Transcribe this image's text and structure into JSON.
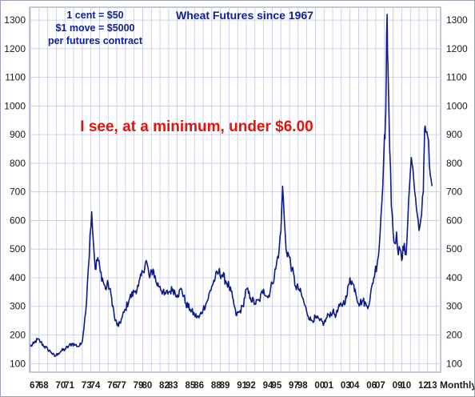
{
  "chart_data": {
    "type": "line",
    "title": "Wheat Futures since 1967",
    "notes": [
      "1 cent = $50",
      "$1 move = $5000",
      "per futures contract"
    ],
    "annotation": "I see, at a minimum, under $6.00",
    "x_unit_label": "Monthly",
    "x_tick_labels": [
      "67",
      "68",
      "70",
      "71",
      "73",
      "74",
      "76",
      "77",
      "79",
      "80",
      "82",
      "83",
      "85",
      "86",
      "88",
      "89",
      "91",
      "92",
      "94",
      "95",
      "97",
      "98",
      "00",
      "01",
      "03",
      "04",
      "06",
      "07",
      "09",
      "10",
      "12",
      "13"
    ],
    "x_tick_years": [
      1967,
      1968,
      1970,
      1971,
      1973,
      1974,
      1976,
      1977,
      1979,
      1980,
      1982,
      1983,
      1985,
      1986,
      1988,
      1989,
      1991,
      1992,
      1994,
      1995,
      1997,
      1998,
      2000,
      2001,
      2003,
      2004,
      2006,
      2007,
      2009,
      2010,
      2012,
      2013
    ],
    "xlim": [
      1966.9,
      2014.5
    ],
    "y_ticks": [
      100,
      200,
      300,
      400,
      500,
      600,
      700,
      800,
      900,
      1000,
      1100,
      1200,
      1300
    ],
    "ylim": [
      70,
      1345
    ],
    "y_axis_sides": [
      "left",
      "right"
    ],
    "grid": true,
    "line_color": "#0d1a8c",
    "series": [
      {
        "x": [
          1967.0,
          1967.4,
          1967.8,
          1968.2,
          1968.6,
          1969.0,
          1969.4,
          1969.8,
          1970.2,
          1970.6,
          1971.0,
          1971.4,
          1971.8,
          1972.2,
          1972.6,
          1972.9,
          1973.1,
          1973.3,
          1973.5,
          1973.7,
          1973.9,
          1974.1,
          1974.3,
          1974.5,
          1974.8,
          1975.1,
          1975.4,
          1975.7,
          1976.0,
          1976.4,
          1976.8,
          1977.2,
          1977.6,
          1978.0,
          1978.5,
          1979.0,
          1979.5,
          1980.0,
          1980.4,
          1980.8,
          1981.2,
          1981.6,
          1982.0,
          1982.5,
          1983.0,
          1983.5,
          1984.0,
          1984.5,
          1985.0,
          1985.5,
          1986.0,
          1986.5,
          1987.0,
          1987.5,
          1988.0,
          1988.4,
          1988.8,
          1989.2,
          1989.6,
          1990.0,
          1990.4,
          1990.8,
          1991.2,
          1991.6,
          1992.0,
          1992.5,
          1993.0,
          1993.5,
          1994.0,
          1994.5,
          1995.0,
          1995.4,
          1995.8,
          1996.0,
          1996.2,
          1996.4,
          1996.6,
          1996.9,
          1997.3,
          1997.7,
          1998.1,
          1998.5,
          1999.0,
          1999.5,
          2000.0,
          2000.5,
          2001.0,
          2001.5,
          2002.0,
          2002.4,
          2002.8,
          2003.2,
          2003.6,
          2004.0,
          2004.3,
          2004.6,
          2005.0,
          2005.5,
          2006.0,
          2006.3,
          2006.6,
          2006.9,
          2007.2,
          2007.4,
          2007.6,
          2007.8,
          2008.0,
          2008.1,
          2008.2,
          2008.3,
          2008.4,
          2008.6,
          2008.8,
          2009.0,
          2009.2,
          2009.4,
          2009.6,
          2009.8,
          2010.0,
          2010.3,
          2010.5,
          2010.7,
          2010.9,
          2011.1,
          2011.3,
          2011.5,
          2011.7,
          2011.9,
          2012.1,
          2012.3,
          2012.5,
          2012.6,
          2012.7,
          2012.9,
          2013.1,
          2013.3,
          2013.5
        ],
        "y": [
          160,
          170,
          185,
          175,
          160,
          150,
          140,
          125,
          135,
          145,
          150,
          160,
          170,
          165,
          160,
          170,
          200,
          260,
          320,
          430,
          550,
          630,
          520,
          430,
          470,
          420,
          390,
          360,
          380,
          330,
          250,
          230,
          260,
          290,
          330,
          350,
          370,
          420,
          460,
          400,
          430,
          380,
          370,
          340,
          350,
          360,
          340,
          360,
          310,
          290,
          270,
          260,
          290,
          320,
          370,
          400,
          420,
          410,
          390,
          370,
          330,
          270,
          280,
          300,
          360,
          330,
          310,
          320,
          360,
          330,
          380,
          430,
          500,
          560,
          720,
          600,
          500,
          480,
          430,
          370,
          360,
          330,
          280,
          250,
          260,
          250,
          240,
          270,
          280,
          270,
          300,
          310,
          330,
          400,
          380,
          360,
          310,
          320,
          300,
          320,
          380,
          420,
          460,
          510,
          620,
          720,
          900,
          940,
          1100,
          1320,
          1150,
          850,
          650,
          560,
          520,
          560,
          480,
          500,
          460,
          520,
          480,
          600,
          720,
          820,
          780,
          700,
          640,
          600,
          580,
          620,
          700,
          850,
          930,
          910,
          880,
          760,
          720
        ]
      }
    ]
  }
}
